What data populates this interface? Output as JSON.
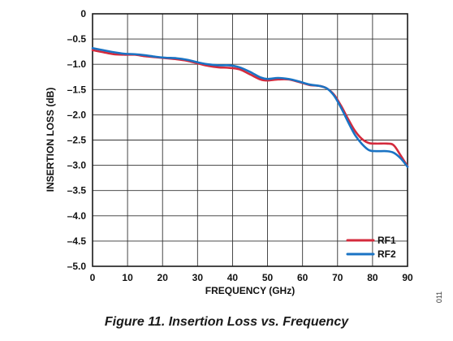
{
  "figure_caption": "Figure 11. Insertion Loss vs. Frequency",
  "figure_code": "011",
  "chart_data": {
    "type": "line",
    "title": "",
    "xlabel": "FREQUENCY (GHz)",
    "ylabel": "INSERTION LOSS (dB)",
    "xlim": [
      0,
      90
    ],
    "ylim": [
      -5.0,
      0
    ],
    "x_ticks": [
      0,
      10,
      20,
      30,
      40,
      50,
      60,
      70,
      80,
      90
    ],
    "x_tick_labels": [
      "0",
      "10",
      "20",
      "30",
      "40",
      "50",
      "60",
      "70",
      "80",
      "90"
    ],
    "y_ticks": [
      0,
      -0.5,
      -1.0,
      -1.5,
      -2.0,
      -2.5,
      -3.0,
      -3.5,
      -4.0,
      -4.5,
      -5.0
    ],
    "y_tick_labels": [
      "0",
      "–0.5",
      "–1.0",
      "–1.5",
      "–2.0",
      "–2.5",
      "–3.0",
      "–3.5",
      "–4.0",
      "–4.5",
      "–5.0"
    ],
    "grid": true,
    "legend_position": "bottom-right",
    "series": [
      {
        "name": "RF1",
        "color": "#d42a3c",
        "x": [
          0,
          3,
          6,
          9,
          12,
          15,
          18,
          21,
          24,
          27,
          30,
          33,
          36,
          39,
          42,
          45,
          48,
          50,
          53,
          56,
          59,
          62,
          65,
          67,
          69,
          71,
          73,
          75,
          77,
          79,
          81,
          84,
          86,
          88,
          90
        ],
        "y": [
          -0.72,
          -0.76,
          -0.8,
          -0.81,
          -0.81,
          -0.84,
          -0.86,
          -0.88,
          -0.9,
          -0.93,
          -0.98,
          -1.03,
          -1.06,
          -1.07,
          -1.1,
          -1.2,
          -1.3,
          -1.32,
          -1.3,
          -1.3,
          -1.35,
          -1.41,
          -1.43,
          -1.48,
          -1.6,
          -1.82,
          -2.08,
          -2.32,
          -2.48,
          -2.56,
          -2.57,
          -2.57,
          -2.6,
          -2.8,
          -3.02
        ]
      },
      {
        "name": "RF2",
        "color": "#1a73c4",
        "x": [
          0,
          3,
          6,
          9,
          12,
          15,
          18,
          21,
          24,
          27,
          30,
          33,
          36,
          39,
          42,
          45,
          48,
          50,
          53,
          56,
          59,
          62,
          65,
          67,
          69,
          71,
          73,
          75,
          77,
          79,
          81,
          84,
          86,
          88,
          90
        ],
        "y": [
          -0.68,
          -0.72,
          -0.76,
          -0.79,
          -0.8,
          -0.82,
          -0.85,
          -0.87,
          -0.88,
          -0.91,
          -0.96,
          -1.0,
          -1.02,
          -1.02,
          -1.06,
          -1.15,
          -1.26,
          -1.29,
          -1.27,
          -1.29,
          -1.34,
          -1.4,
          -1.43,
          -1.48,
          -1.62,
          -1.86,
          -2.14,
          -2.4,
          -2.58,
          -2.7,
          -2.72,
          -2.72,
          -2.75,
          -2.86,
          -3.03
        ]
      }
    ]
  }
}
